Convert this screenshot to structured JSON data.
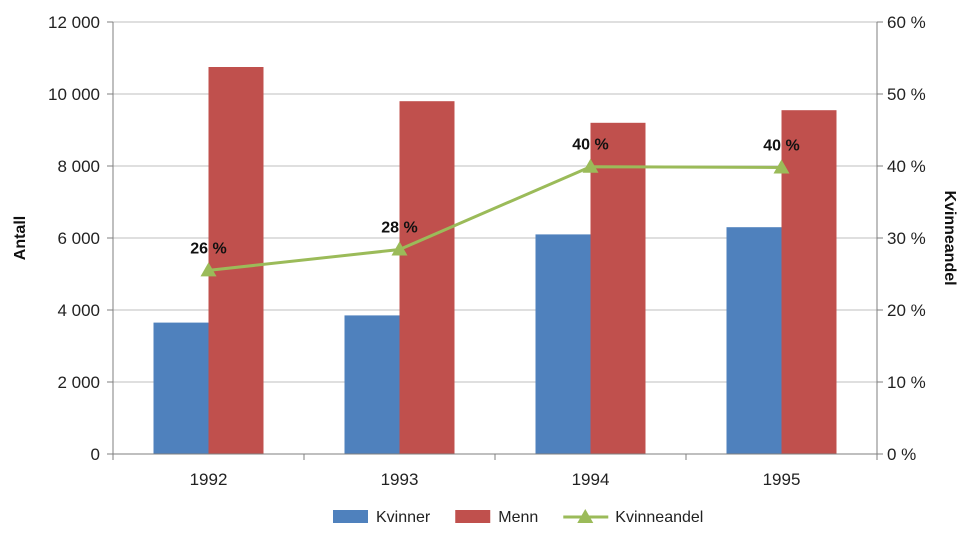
{
  "chart_data": {
    "type": "bar",
    "categories": [
      "1992",
      "1993",
      "1994",
      "1995"
    ],
    "series": [
      {
        "name": "Kvinner",
        "type": "bar",
        "axis": "left",
        "color": "#4f81bd",
        "values": [
          3650,
          3850,
          6100,
          6300
        ]
      },
      {
        "name": "Menn",
        "type": "bar",
        "axis": "left",
        "color": "#c0504d",
        "values": [
          10750,
          9800,
          9200,
          9550
        ]
      },
      {
        "name": "Kvinneandel",
        "type": "line",
        "axis": "right",
        "color": "#9bbb59",
        "marker": "triangle",
        "values": [
          25.5,
          28.4,
          39.9,
          39.8
        ],
        "data_labels": [
          "26 %",
          "28 %",
          "40 %",
          "40 %"
        ]
      }
    ],
    "y_left": {
      "label": "Antall",
      "range": [
        0,
        12000
      ],
      "ticks": [
        0,
        2000,
        4000,
        6000,
        8000,
        10000,
        12000
      ],
      "tick_labels": [
        "0",
        "2 000",
        "4 000",
        "6 000",
        "8 000",
        "10 000",
        "12 000"
      ]
    },
    "y_right": {
      "label": "Kvinneandel",
      "range": [
        0,
        60
      ],
      "ticks": [
        0,
        10,
        20,
        30,
        40,
        50,
        60
      ],
      "tick_labels": [
        "0 %",
        "10 %",
        "20 %",
        "30 %",
        "40 %",
        "50 %",
        "60 %"
      ]
    },
    "grid": true,
    "legend": "bottom",
    "colors": {
      "grid": "#bfbfbf",
      "axis": "#7f7f7f"
    }
  }
}
